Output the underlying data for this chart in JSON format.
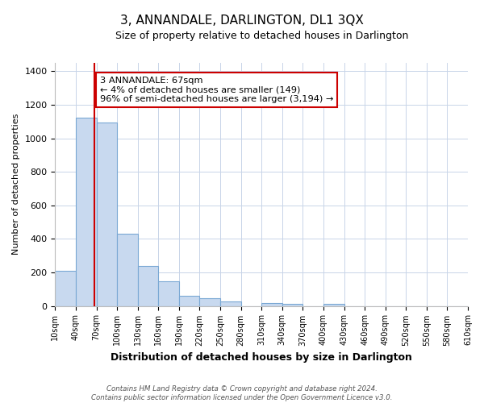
{
  "title": "3, ANNANDALE, DARLINGTON, DL1 3QX",
  "subtitle": "Size of property relative to detached houses in Darlington",
  "xlabel": "Distribution of detached houses by size in Darlington",
  "ylabel": "Number of detached properties",
  "bar_edges": [
    10,
    40,
    70,
    100,
    130,
    160,
    190,
    220,
    250,
    280,
    310,
    340,
    370,
    400,
    430,
    460,
    490,
    520,
    550,
    580,
    610
  ],
  "bar_heights": [
    210,
    1125,
    1095,
    430,
    240,
    145,
    60,
    48,
    25,
    0,
    15,
    10,
    0,
    10,
    0,
    0,
    0,
    0,
    0,
    0
  ],
  "bar_color": "#c8d9ef",
  "bar_edge_color": "#7aa8d4",
  "property_line_x": 67,
  "property_line_color": "#cc0000",
  "annotation_line1": "3 ANNANDALE: 67sqm",
  "annotation_line2": "← 4% of detached houses are smaller (149)",
  "annotation_line3": "96% of semi-detached houses are larger (3,194) →",
  "annotation_box_color": "#ffffff",
  "annotation_box_edge_color": "#cc0000",
  "ylim": [
    0,
    1450
  ],
  "yticks": [
    0,
    200,
    400,
    600,
    800,
    1000,
    1200,
    1400
  ],
  "xtick_labels": [
    "10sqm",
    "40sqm",
    "70sqm",
    "100sqm",
    "130sqm",
    "160sqm",
    "190sqm",
    "220sqm",
    "250sqm",
    "280sqm",
    "310sqm",
    "340sqm",
    "370sqm",
    "400sqm",
    "430sqm",
    "460sqm",
    "490sqm",
    "520sqm",
    "550sqm",
    "580sqm",
    "610sqm"
  ],
  "footer_text": "Contains HM Land Registry data © Crown copyright and database right 2024.\nContains public sector information licensed under the Open Government Licence v3.0.",
  "bg_color": "#ffffff",
  "grid_color": "#c8d4e8"
}
